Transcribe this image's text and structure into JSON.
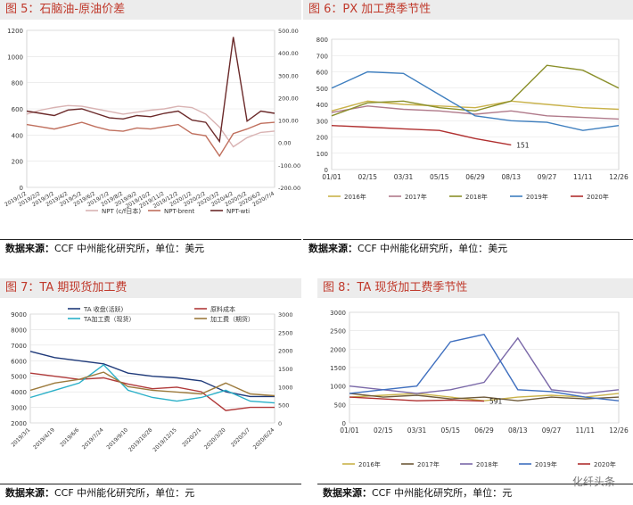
{
  "source_line": {
    "label": "数据来源：",
    "text": "CCF 中州能化研究所，单位：",
    "unit_usd": "美元",
    "unit_cny": "元"
  },
  "watermark": "化纤头条",
  "charts": [
    {
      "id": "fig5",
      "title": "图 5：石脑油-原油价差",
      "chart_data": {
        "type": "line",
        "title": "图 5：石脑油-原油价差",
        "x": [
          "2019/1/",
          "2019/2/",
          "2019/3/",
          "2019/4/",
          "2019/5/",
          "2019/6/",
          "2019/7/",
          "2019/8/",
          "2019/9/",
          "2019/10/",
          "2019/11/",
          "2019/12/",
          "2020/1/",
          "2020/2/",
          "2020/3/",
          "2020/4/",
          "2020/5/",
          "2020/6/",
          "2020/7/"
        ],
        "xticklabels": [
          "2019/1/2",
          "2019/2/2",
          "2019/3/2",
          "2019/4/2",
          "2019/5/2",
          "2019/6/2",
          "2019/7/2",
          "2019/8/2",
          "2019/9/2",
          "2019/10/2",
          "2019/11/2",
          "2019/12/2",
          "2020/1/2",
          "2020/2/2",
          "2020/3/2",
          "2020/4/2",
          "2020/5/2",
          "2020/6/2",
          "2020/7/4"
        ],
        "ylim": [
          0,
          1200
        ],
        "y2lim": [
          -200,
          500
        ],
        "yticks": [
          0,
          200,
          400,
          600,
          800,
          1000,
          1200
        ],
        "y2ticks": [
          "-200.00",
          "-100.00",
          "0.00",
          "100.00",
          "200.00",
          "300.00",
          "400.00",
          "500.00"
        ],
        "series": [
          {
            "name": "NPT (c/f日本)",
            "axis": "left",
            "color": "#d9b3b3",
            "values": [
              560,
              590,
              610,
              625,
              620,
              600,
              580,
              560,
              575,
              590,
              600,
              620,
              610,
              560,
              460,
              310,
              380,
              420,
              430
            ]
          },
          {
            "name": "NPT-brent",
            "axis": "right",
            "color": "#c0705e",
            "values": [
              80,
              70,
              60,
              75,
              90,
              70,
              55,
              50,
              65,
              60,
              70,
              80,
              40,
              30,
              -60,
              40,
              60,
              85,
              90
            ]
          },
          {
            "name": "NPT-wti",
            "axis": "right",
            "color": "#6b2a2a",
            "values": [
              140,
              130,
              120,
              145,
              150,
              130,
              110,
              105,
              120,
              115,
              130,
              140,
              100,
              90,
              5,
              470,
              95,
              140,
              130
            ]
          }
        ]
      }
    },
    {
      "id": "fig6",
      "title": "图 6：PX 加工费季节性",
      "chart_data": {
        "type": "line",
        "title": "图 6：PX 加工费季节性",
        "x": [
          "01/01",
          "02/15",
          "03/31",
          "05/15",
          "06/29",
          "08/13",
          "09/27",
          "11/11",
          "12/26"
        ],
        "ylim": [
          0,
          800
        ],
        "yticks": [
          0,
          100,
          200,
          300,
          400,
          500,
          600,
          700,
          800
        ],
        "annotation": "151",
        "series": [
          {
            "name": "2016年",
            "color": "#c9b24a",
            "values": [
              360,
              420,
              400,
              390,
              380,
              420,
              400,
              380,
              370
            ]
          },
          {
            "name": "2017年",
            "color": "#b07a8a",
            "values": [
              350,
              390,
              370,
              360,
              340,
              360,
              330,
              320,
              310
            ]
          },
          {
            "name": "2018年",
            "color": "#8a8f2a",
            "values": [
              330,
              410,
              420,
              380,
              360,
              420,
              640,
              610,
              500
            ]
          },
          {
            "name": "2019年",
            "color": "#3f7fbf",
            "values": [
              500,
              600,
              590,
              460,
              330,
              300,
              290,
              240,
              270
            ]
          },
          {
            "name": "2020年",
            "color": "#b03030",
            "values": [
              270,
              260,
              250,
              240,
              190,
              151,
              null,
              null,
              null
            ]
          }
        ]
      }
    },
    {
      "id": "fig7",
      "title": "图 7：TA 期现货加工费",
      "chart_data": {
        "type": "line",
        "title": "图 7：TA 期现货加工费",
        "x": [
          "2019/3/1",
          "2019/4/19",
          "2019/6/6",
          "2019/7/24",
          "2019/9/10",
          "2019/10/28",
          "2019/12/15",
          "2020/2/1",
          "2020/3/20",
          "2020/5/7",
          "2020/6/24"
        ],
        "ylim": [
          2000,
          9000
        ],
        "y2lim": [
          0,
          3000
        ],
        "yticks": [
          2000,
          3000,
          4000,
          5000,
          6000,
          7000,
          8000,
          9000
        ],
        "y2ticks": [
          0,
          500,
          1000,
          1500,
          2000,
          2500,
          3000
        ],
        "series": [
          {
            "name": "TA 收盘(活跃)",
            "axis": "left",
            "color": "#1f3a7a",
            "values": [
              6600,
              6200,
              6000,
              5800,
              5200,
              5000,
              4900,
              4700,
              4000,
              3700,
              3700
            ]
          },
          {
            "name": "原料成本",
            "axis": "left",
            "color": "#b03a3a",
            "values": [
              5200,
              5000,
              4800,
              4900,
              4500,
              4200,
              4300,
              4000,
              2800,
              3000,
              3000
            ]
          },
          {
            "name": "TA加工费（现货）",
            "axis": "right",
            "color": "#2ab0c8",
            "values": [
              700,
              900,
              1100,
              1600,
              900,
              700,
              600,
              700,
              900,
              600,
              550
            ]
          },
          {
            "name": "加工费（期货）",
            "axis": "right",
            "color": "#9c7a3c",
            "values": [
              900,
              1100,
              1200,
              1400,
              1000,
              900,
              850,
              800,
              1100,
              800,
              750
            ]
          }
        ]
      }
    },
    {
      "id": "fig8",
      "title": "图 8：TA 现货加工费季节性",
      "chart_data": {
        "type": "line",
        "title": "图 8：TA 现货加工费季节性",
        "x": [
          "01/01",
          "02/15",
          "03/31",
          "05/15",
          "06/29",
          "08/13",
          "09/27",
          "11/11",
          "12/26"
        ],
        "ylim": [
          0,
          3000
        ],
        "yticks": [
          0,
          500,
          1000,
          1500,
          2000,
          2500,
          3000
        ],
        "annotation": "591",
        "series": [
          {
            "name": "2016年",
            "color": "#c9b24a",
            "values": [
              700,
              750,
              800,
              700,
              600,
              700,
              750,
              700,
              800
            ]
          },
          {
            "name": "2017年",
            "color": "#6e5a3a",
            "values": [
              800,
              700,
              750,
              650,
              700,
              600,
              700,
              650,
              700
            ]
          },
          {
            "name": "2018年",
            "color": "#7a68a8",
            "values": [
              1000,
              900,
              800,
              900,
              1100,
              2300,
              900,
              800,
              900
            ]
          },
          {
            "name": "2019年",
            "color": "#3f6fbf",
            "values": [
              800,
              900,
              1000,
              2200,
              2400,
              900,
              850,
              700,
              600
            ]
          },
          {
            "name": "2020年",
            "color": "#b03030",
            "values": [
              700,
              650,
              600,
              620,
              591,
              null,
              null,
              null,
              null
            ]
          }
        ]
      }
    }
  ]
}
